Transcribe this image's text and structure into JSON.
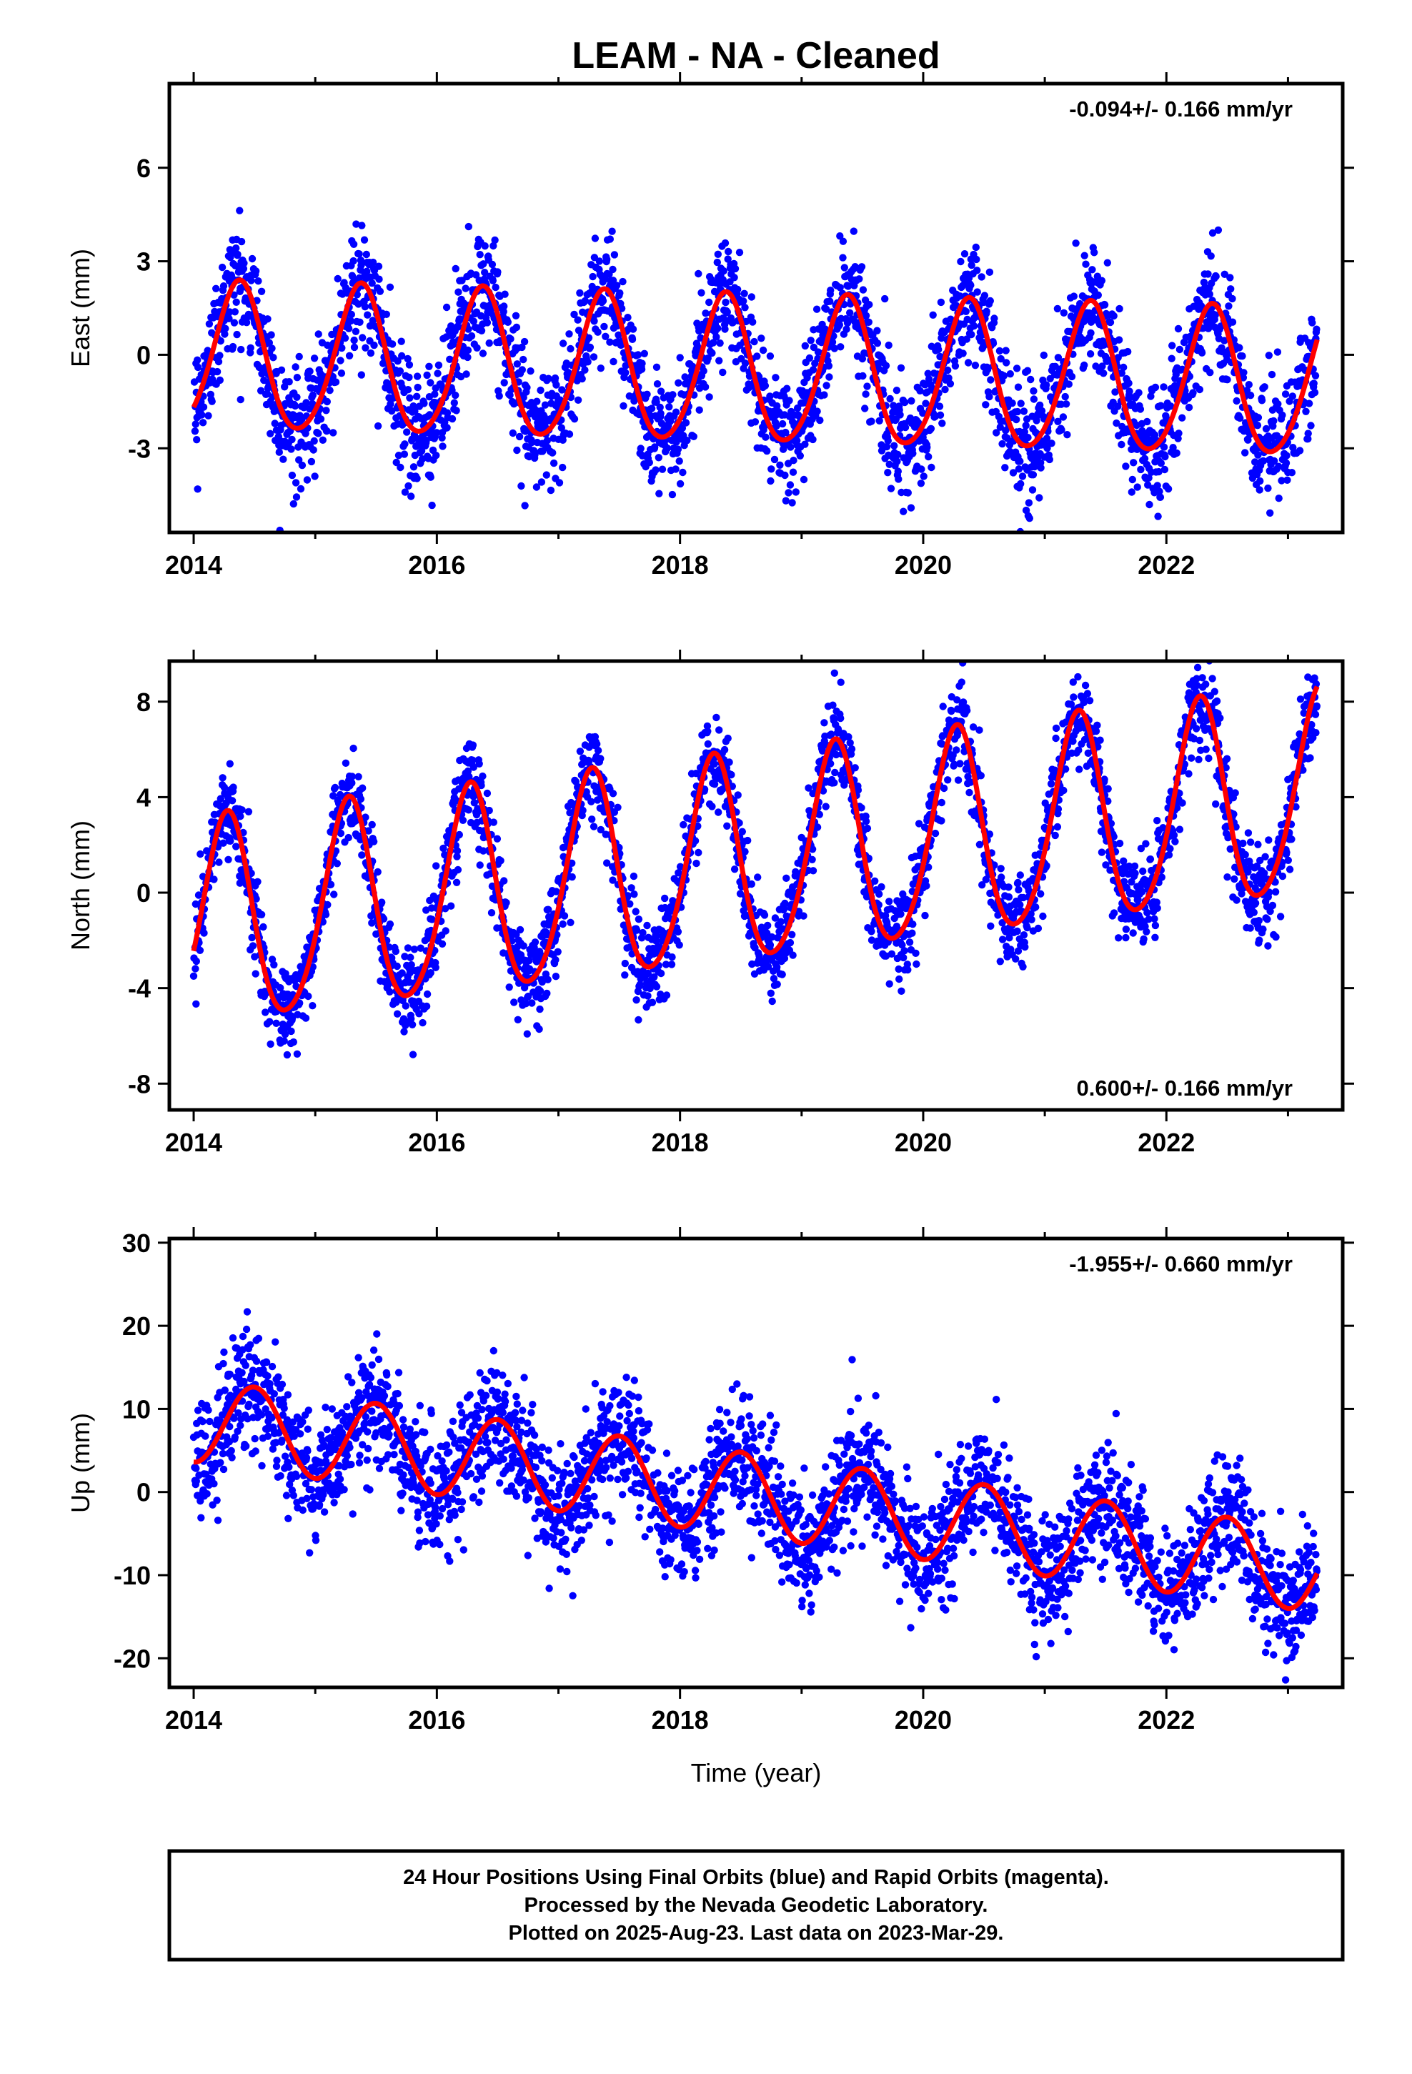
{
  "title": "LEAM  - NA - Cleaned",
  "chart_data": [
    {
      "type": "scatter",
      "ylabel": "East (mm)",
      "xlim": [
        2013.8,
        2023.45
      ],
      "ylim": [
        -5.7,
        8.7
      ],
      "yticks": [
        -3,
        0,
        3,
        6
      ],
      "xticks": [
        2014,
        2016,
        2018,
        2020,
        2022
      ],
      "rate_text": "-0.094+/- 0.166 mm/yr",
      "rate_position": "top-right",
      "fit_model": {
        "intercept": -0.15,
        "slope": -0.094,
        "amp_annual": 2.35,
        "phase_annual": 0.37,
        "amp_semiannual": 0.25,
        "phase_semiannual": 0.4
      },
      "scatter_sd": 0.95,
      "series": [
        {
          "color": "#0000ff",
          "kind": "points",
          "values_desc": "daily"
        },
        {
          "color": "#ff0000",
          "kind": "fit-line"
        }
      ]
    },
    {
      "type": "scatter",
      "ylabel": "North (mm)",
      "xlim": [
        2013.8,
        2023.45
      ],
      "ylim": [
        -9.1,
        9.7
      ],
      "yticks": [
        -8,
        -4,
        0,
        4,
        8
      ],
      "xticks": [
        2014,
        2016,
        2018,
        2020,
        2022
      ],
      "rate_text": "0.600+/- 0.166 mm/yr",
      "rate_position": "bottom-right",
      "fit_model": {
        "intercept": -1.5,
        "slope": 0.6,
        "amp_annual": 4.3,
        "phase_annual": 0.27,
        "amp_semiannual": 0.5,
        "phase_semiannual": 0.3
      },
      "scatter_sd": 0.95,
      "series": [
        {
          "color": "#0000ff",
          "kind": "points",
          "values_desc": "daily"
        },
        {
          "color": "#ff0000",
          "kind": "fit-line"
        }
      ]
    },
    {
      "type": "scatter",
      "ylabel": "Up (mm)",
      "xlim": [
        2013.8,
        2023.45
      ],
      "ylim": [
        -23.5,
        30.5
      ],
      "yticks": [
        -20,
        -10,
        0,
        10,
        20,
        30
      ],
      "xticks": [
        2014,
        2016,
        2018,
        2020,
        2022
      ],
      "xlabel": "Time (year)",
      "rate_text": "-1.955+/- 0.660 mm/yr",
      "rate_position": "top-right",
      "fit_model": {
        "intercept": 8.6,
        "slope": -1.955,
        "amp_annual": 5.0,
        "phase_annual": 0.5,
        "amp_semiannual": 0.0,
        "phase_semiannual": 0.0
      },
      "scatter_sd": 3.6,
      "series": [
        {
          "color": "#0000ff",
          "kind": "points",
          "values_desc": "daily"
        },
        {
          "color": "#ff0000",
          "kind": "fit-line"
        }
      ]
    }
  ],
  "footer": {
    "line1": "24 Hour Positions Using Final Orbits (blue) and Rapid Orbits (magenta).",
    "line2": "Processed by the Nevada Geodetic Laboratory.",
    "line3": "Plotted on 2025-Aug-23. Last data on 2023-Mar-29."
  }
}
